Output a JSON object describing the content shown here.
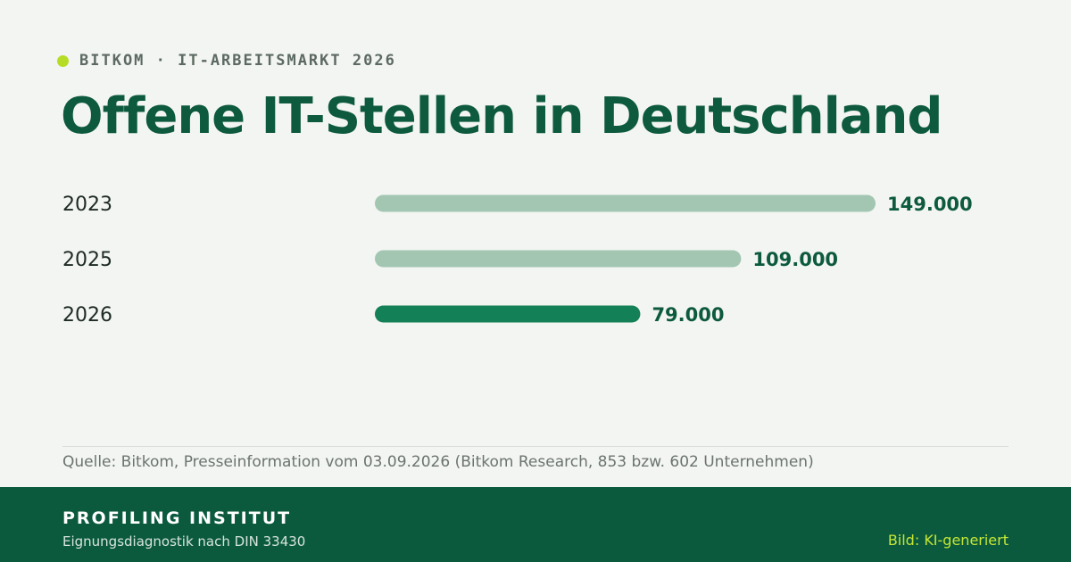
{
  "header": {
    "kicker": "BITKOM · IT-ARBEITSMARKT 2026",
    "title": "Offene IT-Stellen in Deutschland"
  },
  "chart_data": {
    "type": "bar",
    "orientation": "horizontal",
    "categories": [
      "2023",
      "2025",
      "2026"
    ],
    "values": [
      149000,
      109000,
      79000
    ],
    "value_labels": [
      "149.000",
      "109.000",
      "79.000"
    ],
    "xlim": [
      0,
      149000
    ],
    "grid": false,
    "legend": "none",
    "title": "Offene IT-Stellen in Deutschland"
  },
  "source": "Quelle: Bitkom, Presseinformation vom 03.09.2026 (Bitkom Research, 853 bzw. 602 Unternehmen)",
  "footer": {
    "org": "PROFILING INSTITUT",
    "org_subtitle": "Eignungsdiagnostik nach DIN 33430",
    "credit": "Bild: KI-generiert"
  },
  "colors": {
    "background": "#f3f5f2",
    "title": "#0d5a3f",
    "accent_dot": "#b6dc26",
    "bar_light": "#a2c6b2",
    "bar_highlight": "#148057",
    "value_text": "#0d5a3f",
    "footer_bg": "#0b5a3d",
    "credit_text": "#c5e635"
  }
}
